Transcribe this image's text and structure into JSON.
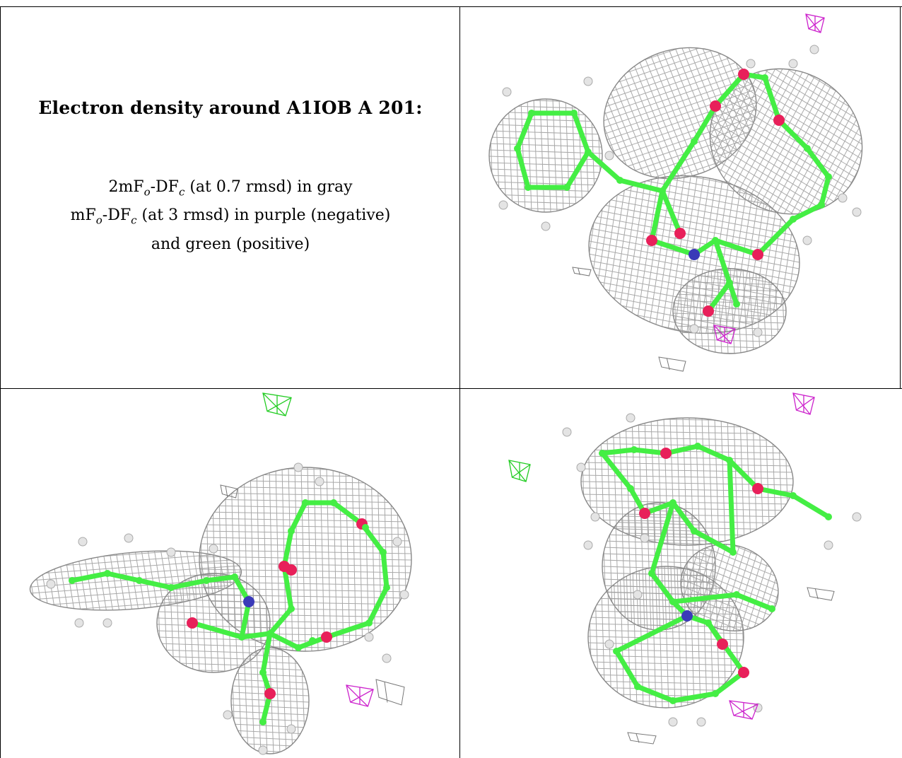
{
  "caption": {
    "title": "Electron density around A1IOB A 201:",
    "line1_a": "2mF",
    "line1_b": "o",
    "line1_c": "-DF",
    "line1_d": "c",
    "line1_e": " (at 0.7 rmsd) in gray",
    "line2_a": "mF",
    "line2_b": "o",
    "line2_c": "-DF",
    "line2_d": "c",
    "line2_e": " (at 3 rmsd) in purple (negative)",
    "line3": "and green (positive)"
  },
  "colors": {
    "mesh": "#9a9a9a",
    "carbon": "#44ee44",
    "oxygen": "#e8205a",
    "nitrogen": "#3a3ab8",
    "hydrogen": "#e4e4e4",
    "negative_density": "#cc22cc",
    "positive_density": "#22cc22"
  },
  "panels": [
    {
      "name": "view-top-right"
    },
    {
      "name": "view-bottom-left"
    },
    {
      "name": "view-bottom-right"
    }
  ]
}
